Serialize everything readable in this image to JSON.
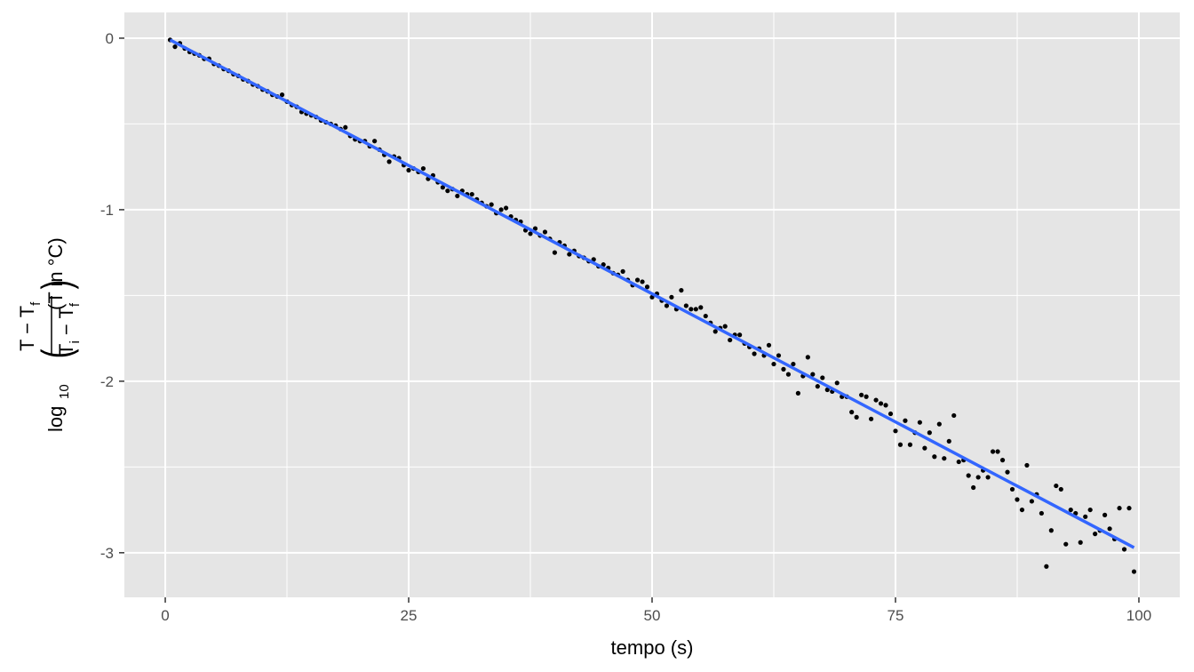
{
  "chart_data": {
    "type": "scatter",
    "xlabel": "tempo (s)",
    "ylabel": {
      "func": "log",
      "func_sub": "10",
      "num": "T − T",
      "num_sub": "f",
      "den": "T",
      "den_sub": "i",
      "den_rest": " − T",
      "den_rest_sub": "f",
      "unit": "(T in °C)"
    },
    "xlim": [
      -4.2,
      104.2
    ],
    "ylim": [
      -3.26,
      0.15
    ],
    "xticks": [
      0,
      25,
      50,
      75,
      100
    ],
    "yticks": [
      -3,
      -2,
      -1,
      0
    ],
    "xminor": [
      12.5,
      37.5,
      62.5,
      87.5
    ],
    "yminor": [
      -2.5,
      -1.5,
      -0.5
    ],
    "grid": true,
    "points": {
      "color": "#000000",
      "x": [
        0.5,
        1,
        1.5,
        2,
        2.5,
        3,
        3.5,
        4,
        4.5,
        5,
        5.5,
        6,
        6.5,
        7,
        7.5,
        8,
        8.5,
        9,
        9.5,
        10,
        10.5,
        11,
        11.5,
        12,
        12.5,
        13,
        13.5,
        14,
        14.5,
        15,
        15.5,
        16,
        16.5,
        17,
        17.5,
        18,
        18.5,
        19,
        19.5,
        20,
        20.5,
        21,
        21.5,
        22,
        22.5,
        23,
        23.5,
        24,
        24.5,
        25,
        25.5,
        26,
        26.5,
        27,
        27.5,
        28,
        28.5,
        29,
        29.5,
        30,
        30.5,
        31,
        31.5,
        32,
        32.5,
        33,
        33.5,
        34,
        34.5,
        35,
        35.5,
        36,
        36.5,
        37,
        37.5,
        38,
        38.5,
        39,
        39.5,
        40,
        40.5,
        41,
        41.5,
        42,
        42.5,
        43,
        43.5,
        44,
        44.5,
        45,
        45.5,
        46,
        46.5,
        47,
        47.5,
        48,
        48.5,
        49,
        49.5,
        50,
        50.5,
        51,
        51.5,
        52,
        52.5,
        53,
        53.5,
        54,
        54.5,
        55,
        55.5,
        56,
        56.5,
        57,
        57.5,
        58,
        58.5,
        59,
        59.5,
        60,
        60.5,
        61,
        61.5,
        62,
        62.5,
        63,
        63.5,
        64,
        64.5,
        65,
        65.5,
        66,
        66.5,
        67,
        67.5,
        68,
        68.5,
        69,
        69.5,
        70,
        70.5,
        71,
        71.5,
        72,
        72.5,
        73,
        73.5,
        74,
        74.5,
        75,
        75.5,
        76,
        76.5,
        77,
        77.5,
        78,
        78.5,
        79,
        79.5,
        80,
        80.5,
        81,
        81.5,
        82,
        82.5,
        83,
        83.5,
        84,
        84.5,
        85,
        85.5,
        86,
        86.5,
        87,
        87.5,
        88,
        88.5,
        89,
        89.5,
        90,
        90.5,
        91,
        91.5,
        92,
        92.5,
        93,
        93.5,
        94,
        94.5,
        95,
        95.5,
        96,
        96.5,
        97,
        97.5,
        98,
        98.5,
        99,
        99.5
      ],
      "y": [
        -0.01,
        -0.05,
        -0.03,
        -0.06,
        -0.08,
        -0.09,
        -0.1,
        -0.12,
        -0.12,
        -0.15,
        -0.16,
        -0.18,
        -0.19,
        -0.21,
        -0.22,
        -0.24,
        -0.25,
        -0.27,
        -0.28,
        -0.3,
        -0.31,
        -0.33,
        -0.34,
        -0.33,
        -0.37,
        -0.39,
        -0.4,
        -0.43,
        -0.44,
        -0.45,
        -0.46,
        -0.48,
        -0.49,
        -0.5,
        -0.51,
        -0.53,
        -0.52,
        -0.57,
        -0.59,
        -0.6,
        -0.6,
        -0.63,
        -0.6,
        -0.65,
        -0.68,
        -0.72,
        -0.69,
        -0.7,
        -0.74,
        -0.77,
        -0.76,
        -0.78,
        -0.76,
        -0.82,
        -0.8,
        -0.84,
        -0.87,
        -0.89,
        -0.88,
        -0.92,
        -0.89,
        -0.91,
        -0.91,
        -0.94,
        -0.96,
        -0.98,
        -0.97,
        -1.02,
        -1.0,
        -0.99,
        -1.04,
        -1.06,
        -1.07,
        -1.12,
        -1.14,
        -1.11,
        -1.15,
        -1.13,
        -1.17,
        -1.25,
        -1.19,
        -1.21,
        -1.26,
        -1.24,
        -1.27,
        -1.28,
        -1.3,
        -1.29,
        -1.33,
        -1.32,
        -1.34,
        -1.37,
        -1.38,
        -1.36,
        -1.41,
        -1.44,
        -1.41,
        -1.42,
        -1.45,
        -1.51,
        -1.49,
        -1.53,
        -1.56,
        -1.51,
        -1.58,
        -1.47,
        -1.56,
        -1.58,
        -1.58,
        -1.57,
        -1.62,
        -1.66,
        -1.71,
        -1.69,
        -1.68,
        -1.76,
        -1.73,
        -1.73,
        -1.78,
        -1.8,
        -1.84,
        -1.81,
        -1.85,
        -1.79,
        -1.9,
        -1.85,
        -1.93,
        -1.96,
        -1.9,
        -2.07,
        -1.97,
        -1.86,
        -1.96,
        -2.03,
        -1.98,
        -2.05,
        -2.06,
        -2.01,
        -2.09,
        -2.09,
        -2.18,
        -2.21,
        -2.08,
        -2.09,
        -2.22,
        -2.11,
        -2.13,
        -2.14,
        -2.19,
        -2.29,
        -2.37,
        -2.23,
        -2.37,
        -2.3,
        -2.24,
        -2.39,
        -2.3,
        -2.44,
        -2.25,
        -2.45,
        -2.35,
        -2.2,
        -2.47,
        -2.46,
        -2.55,
        -2.62,
        -2.56,
        -2.52,
        -2.56,
        -2.41,
        -2.41,
        -2.46,
        -2.53,
        -2.63,
        -2.69,
        -2.75,
        -2.49,
        -2.7,
        -2.66,
        -2.77,
        -3.08,
        -2.87,
        -2.61,
        -2.63,
        -2.95,
        -2.75,
        -2.77,
        -2.94,
        -2.79,
        -2.75,
        -2.89,
        -2.87,
        -2.78,
        -2.86,
        -2.92,
        -2.74,
        -2.98,
        -2.74,
        -3.11
      ]
    },
    "fit": {
      "color": "#3366ff",
      "x": [
        0.5,
        99.5
      ],
      "y": [
        -0.01,
        -2.97
      ]
    }
  }
}
